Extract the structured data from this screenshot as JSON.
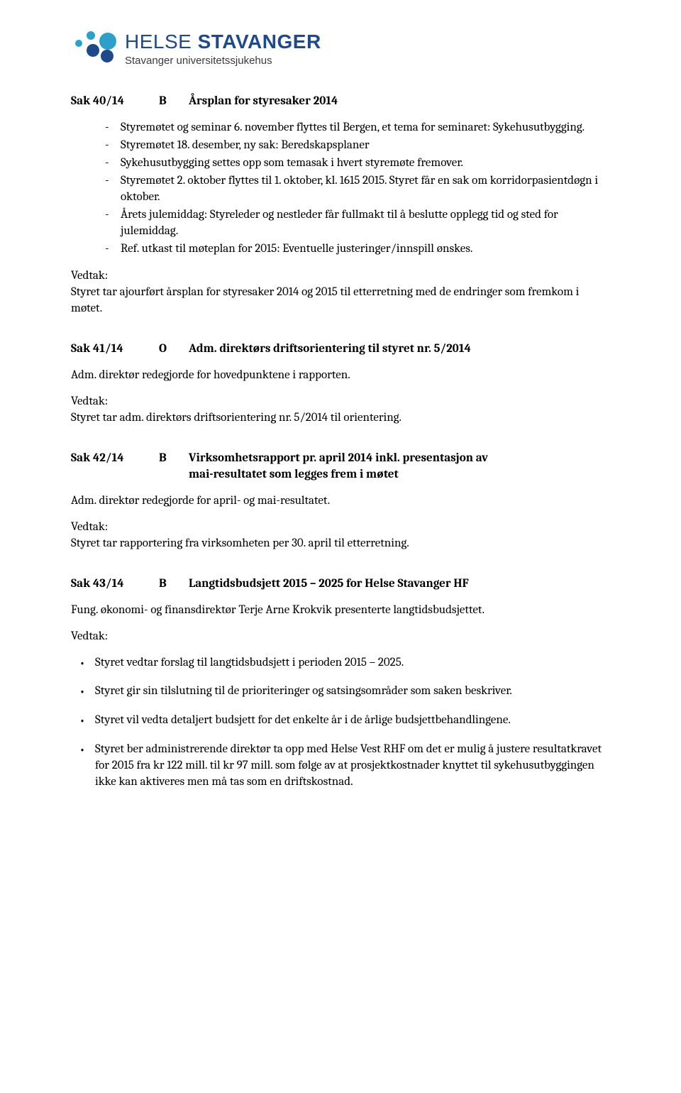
{
  "logo": {
    "brand_light": "HELSE",
    "brand_bold": "STAVANGER",
    "subtitle": "Stavanger universitetssjukehus",
    "colors": {
      "blue": "#1e4a8a",
      "cyan": "#2ca0c8"
    }
  },
  "sak40": {
    "num": "Sak 40/14",
    "type": "B",
    "title": "Årsplan for styresaker 2014",
    "bullets": [
      "Styremøtet og seminar 6. november flyttes til Bergen, et tema for seminaret: Sykehusutbygging.",
      "Styremøtet 18. desember, ny sak: Beredskapsplaner",
      "Sykehusutbygging settes opp som temasak i hvert styremøte fremover.",
      "Styremøtet 2. oktober flyttes til 1. oktober, kl. 1615 2015. Styret får en sak om korridorpasientdøgn i oktober.",
      "Årets julemiddag: Styreleder og nestleder får fullmakt til å beslutte opplegg tid og sted for julemiddag.",
      "Ref. utkast til møteplan for 2015: Eventuelle justeringer/innspill ønskes."
    ],
    "vedtak_label": "Vedtak:",
    "vedtak_text": "Styret tar ajourført årsplan for styresaker 2014 og 2015 til etterretning med de endringer som fremkom i møtet."
  },
  "sak41": {
    "num": "Sak 41/14",
    "type": "O",
    "title": "Adm. direktørs driftsorientering til styret nr. 5/2014",
    "para": "Adm. direktør redegjorde for hovedpunktene i rapporten.",
    "vedtak_label": "Vedtak:",
    "vedtak_text": "Styret tar adm. direktørs driftsorientering nr. 5/2014 til orientering."
  },
  "sak42": {
    "num": "Sak 42/14",
    "type": "B",
    "title_l1": "Virksomhetsrapport pr. april 2014 inkl. presentasjon av",
    "title_l2": "mai-resultatet som legges frem i møtet",
    "para": "Adm. direktør redegjorde for april- og mai-resultatet.",
    "vedtak_label": "Vedtak:",
    "vedtak_text": "Styret tar rapportering fra virksomheten per 30. april til etterretning."
  },
  "sak43": {
    "num": "Sak 43/14",
    "type": "B",
    "title": "Langtidsbudsjett 2015 – 2025 for Helse Stavanger HF",
    "para": "Fung. økonomi- og finansdirektør Terje Arne Krokvik presenterte langtidsbudsjettet.",
    "vedtak_label": "Vedtak:",
    "dots": [
      "Styret vedtar forslag til langtidsbudsjett i perioden 2015 – 2025.",
      "Styret gir sin tilslutning til de prioriteringer og satsingsområder som saken beskriver.",
      "Styret vil vedta detaljert budsjett for det enkelte år i de årlige budsjettbehandlingene.",
      "Styret ber administrerende direktør ta opp med Helse Vest RHF om det er mulig å justere resultatkravet for 2015 fra kr 122 mill. til kr 97 mill. som følge av at prosjektkostnader knyttet til sykehusutbyggingen ikke kan aktiveres men må tas som en driftskostnad."
    ]
  }
}
